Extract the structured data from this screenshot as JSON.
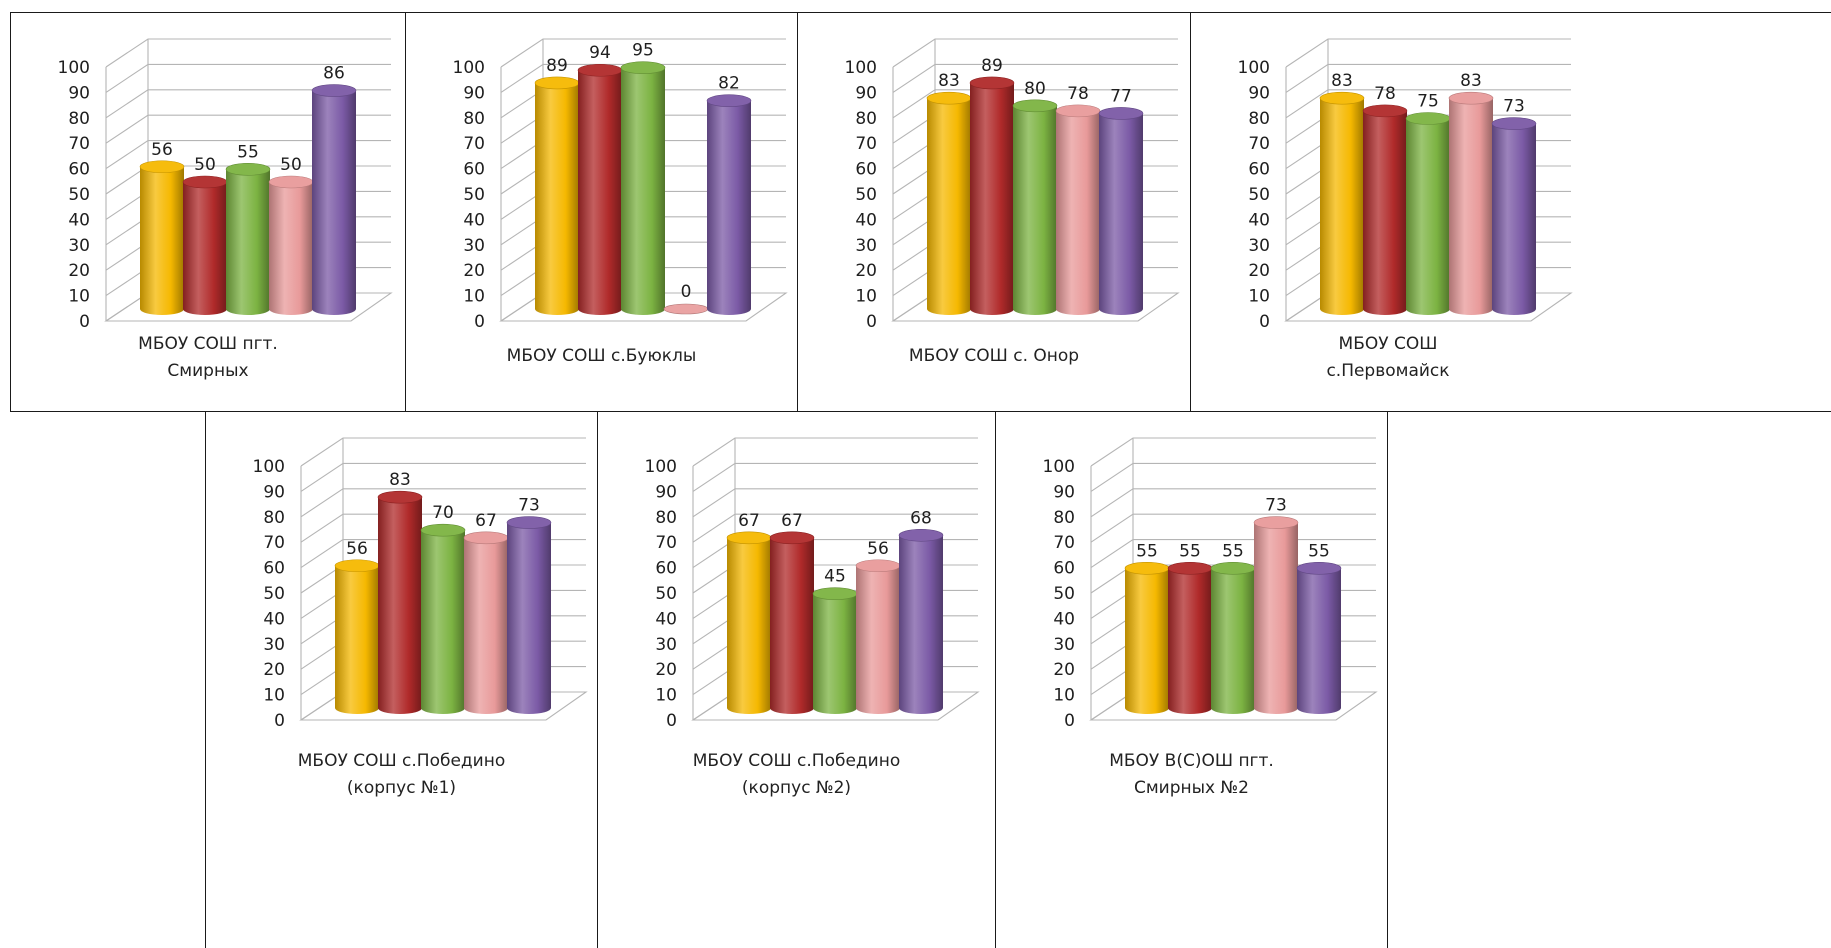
{
  "colors": {
    "series": [
      "#f5b800",
      "#b02a2a",
      "#7cb342",
      "#e89a9a",
      "#7b5aa6"
    ],
    "grid": "#b5b5b5",
    "text": "#1f1f1f"
  },
  "chart_data": [
    {
      "type": "bar",
      "style": "3d-cylinder",
      "title": "",
      "caption": [
        "МБОУ СОШ пгт.",
        "Смирных"
      ],
      "values": [
        56,
        50,
        55,
        50,
        86
      ],
      "ylim": [
        0,
        100
      ],
      "yticks": [
        0,
        10,
        20,
        30,
        40,
        50,
        60,
        70,
        80,
        90,
        100
      ],
      "grid": true
    },
    {
      "type": "bar",
      "style": "3d-cylinder",
      "title": "",
      "caption": [
        "МБОУ СОШ с.Буюклы"
      ],
      "values": [
        89,
        94,
        95,
        0,
        82
      ],
      "ylim": [
        0,
        100
      ],
      "yticks": [
        0,
        10,
        20,
        30,
        40,
        50,
        60,
        70,
        80,
        90,
        100
      ],
      "grid": true
    },
    {
      "type": "bar",
      "style": "3d-cylinder",
      "title": "",
      "caption": [
        "МБОУ СОШ с. Онор"
      ],
      "values": [
        83,
        89,
        80,
        78,
        77
      ],
      "ylim": [
        0,
        100
      ],
      "yticks": [
        0,
        10,
        20,
        30,
        40,
        50,
        60,
        70,
        80,
        90,
        100
      ],
      "grid": true
    },
    {
      "type": "bar",
      "style": "3d-cylinder",
      "title": "",
      "caption": [
        "МБОУ СОШ",
        "с.Первомайск"
      ],
      "values": [
        83,
        78,
        75,
        83,
        73
      ],
      "ylim": [
        0,
        100
      ],
      "yticks": [
        0,
        10,
        20,
        30,
        40,
        50,
        60,
        70,
        80,
        90,
        100
      ],
      "grid": true
    },
    {
      "type": "bar",
      "style": "3d-cylinder",
      "title": "",
      "caption": [
        "МБОУ СОШ с.Победино",
        "(корпус №1)"
      ],
      "values": [
        56,
        83,
        70,
        67,
        73
      ],
      "ylim": [
        0,
        100
      ],
      "yticks": [
        0,
        10,
        20,
        30,
        40,
        50,
        60,
        70,
        80,
        90,
        100
      ],
      "grid": true
    },
    {
      "type": "bar",
      "style": "3d-cylinder",
      "title": "",
      "caption": [
        "МБОУ СОШ с.Победино",
        "(корпус №2)"
      ],
      "values": [
        67,
        67,
        45,
        56,
        68
      ],
      "ylim": [
        0,
        100
      ],
      "yticks": [
        0,
        10,
        20,
        30,
        40,
        50,
        60,
        70,
        80,
        90,
        100
      ],
      "grid": true
    },
    {
      "type": "bar",
      "style": "3d-cylinder",
      "title": "",
      "caption": [
        "МБОУ В(С)ОШ пгт.",
        "Смирных №2"
      ],
      "values": [
        55,
        55,
        55,
        73,
        55
      ],
      "ylim": [
        0,
        100
      ],
      "yticks": [
        0,
        10,
        20,
        30,
        40,
        50,
        60,
        70,
        80,
        90,
        100
      ],
      "grid": true
    }
  ]
}
